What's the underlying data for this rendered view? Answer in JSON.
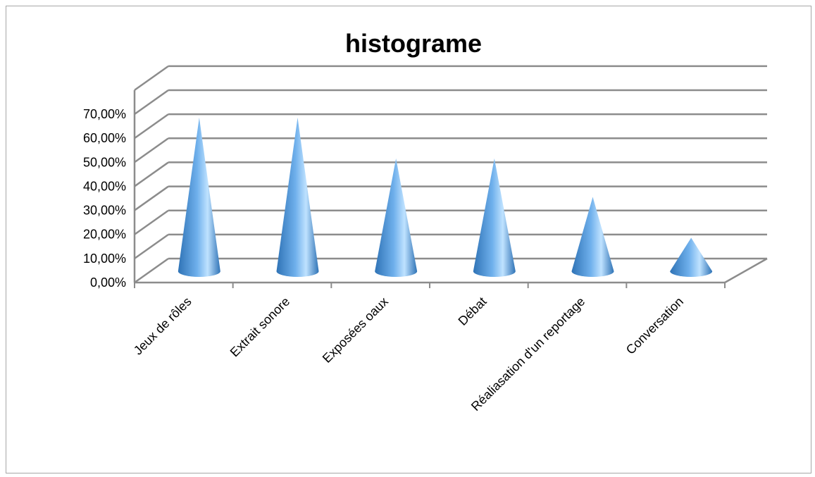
{
  "chart_data": {
    "type": "bar",
    "shape": "cone",
    "title": "histograme",
    "xlabel": "",
    "ylabel": "",
    "categories": [
      "Jeux de rôles",
      "Extrait sonore",
      "Exposées oaux",
      "Débat",
      "Réaliasation d'un reportage",
      "Conversation"
    ],
    "values": [
      0.68,
      0.68,
      0.51,
      0.51,
      0.35,
      0.18
    ],
    "ylim": [
      0,
      0.7
    ],
    "yticks": [
      "0,00%",
      "10,00%",
      "20,00%",
      "30,00%",
      "40,00%",
      "50,00%",
      "60,00%",
      "70,00%"
    ],
    "grid": true,
    "legend": "none",
    "colors": {
      "cone_light": "#bfe2ff",
      "cone_mid": "#6fb0ec",
      "cone_dark": "#2f73b6",
      "grid": "#8c8c8c"
    }
  }
}
